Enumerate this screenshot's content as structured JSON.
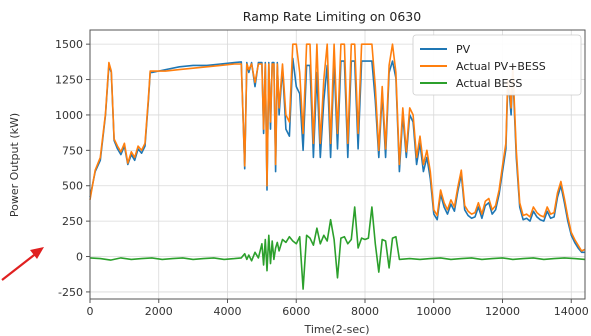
{
  "chart_data": {
    "type": "line",
    "title": "Ramp Rate Limiting on 0630",
    "xlabel": "Time(2-sec)",
    "ylabel": "Power Output (kW)",
    "xlim": [
      0,
      14400
    ],
    "ylim": [
      -300,
      1600
    ],
    "xticks": [
      0,
      2000,
      4000,
      6000,
      8000,
      10000,
      12000,
      14000
    ],
    "xtick_labels": [
      "0",
      "2000",
      "4000",
      "6000",
      "8000",
      "10000",
      "12000",
      "14000"
    ],
    "yticks": [
      -250,
      0,
      250,
      500,
      750,
      1000,
      1250,
      1500
    ],
    "ytick_labels": [
      "-250",
      "0",
      "250",
      "500",
      "750",
      "1000",
      "1250",
      "1500"
    ],
    "grid": true,
    "legend_position": "top-right",
    "series": [
      {
        "name": "PV",
        "color": "#1f77b4",
        "x": [
          0,
          150,
          300,
          450,
          550,
          620,
          700,
          800,
          900,
          1000,
          1100,
          1200,
          1300,
          1400,
          1500,
          1600,
          1700,
          1750,
          1800,
          2200,
          2600,
          3000,
          3400,
          3800,
          4200,
          4400,
          4500,
          4560,
          4620,
          4700,
          4800,
          4900,
          5000,
          5050,
          5100,
          5150,
          5200,
          5250,
          5300,
          5350,
          5400,
          5450,
          5500,
          5600,
          5700,
          5800,
          5900,
          6000,
          6100,
          6200,
          6300,
          6400,
          6500,
          6600,
          6700,
          6800,
          6900,
          7000,
          7100,
          7200,
          7300,
          7400,
          7500,
          7600,
          7700,
          7800,
          7900,
          8000,
          8100,
          8200,
          8300,
          8400,
          8500,
          8600,
          8700,
          8800,
          8900,
          9000,
          9100,
          9200,
          9300,
          9400,
          9500,
          9600,
          9700,
          9800,
          9900,
          10000,
          10100,
          10200,
          10300,
          10400,
          10500,
          10600,
          10700,
          10800,
          10900,
          11000,
          11100,
          11200,
          11300,
          11400,
          11500,
          11600,
          11700,
          11800,
          11900,
          12000,
          12100,
          12150,
          12200,
          12250,
          12300,
          12400,
          12500,
          12600,
          12700,
          12800,
          12900,
          13000,
          13100,
          13200,
          13300,
          13400,
          13500,
          13600,
          13700,
          13800,
          13900,
          14000,
          14100,
          14200,
          14300,
          14400
        ],
        "y": [
          420,
          600,
          680,
          1000,
          1350,
          1300,
          820,
          760,
          720,
          780,
          650,
          720,
          680,
          760,
          730,
          780,
          1100,
          1300,
          1300,
          1320,
          1340,
          1350,
          1350,
          1360,
          1370,
          1375,
          620,
          1370,
          1300,
          1370,
          1200,
          1370,
          1370,
          870,
          1370,
          470,
          1370,
          900,
          1370,
          1370,
          600,
          1370,
          1000,
          1330,
          900,
          850,
          1400,
          1200,
          1150,
          750,
          1350,
          1350,
          700,
          1300,
          700,
          1100,
          1350,
          700,
          1380,
          760,
          1380,
          1380,
          700,
          1380,
          1380,
          760,
          1380,
          1380,
          1380,
          1380,
          1100,
          700,
          1150,
          700,
          1300,
          1380,
          1260,
          600,
          1000,
          700,
          1000,
          950,
          650,
          800,
          600,
          700,
          550,
          300,
          260,
          440,
          350,
          300,
          370,
          320,
          460,
          580,
          330,
          290,
          270,
          280,
          350,
          270,
          360,
          380,
          300,
          330,
          440,
          600,
          760,
          1200,
          1150,
          1000,
          1300,
          700,
          350,
          260,
          270,
          250,
          320,
          280,
          260,
          250,
          320,
          270,
          280,
          420,
          500,
          380,
          250,
          150,
          100,
          60,
          30,
          30
        ]
      },
      {
        "name": "Actual PV+BESS",
        "color": "#ff7f0e",
        "x": [
          0,
          150,
          300,
          450,
          550,
          620,
          700,
          800,
          900,
          1000,
          1100,
          1200,
          1300,
          1400,
          1500,
          1600,
          1700,
          1750,
          1800,
          2200,
          2600,
          3000,
          3400,
          3800,
          4200,
          4400,
          4500,
          4560,
          4620,
          4700,
          4800,
          4900,
          5000,
          5050,
          5100,
          5150,
          5200,
          5250,
          5300,
          5350,
          5400,
          5450,
          5500,
          5600,
          5700,
          5800,
          5900,
          6000,
          6100,
          6200,
          6300,
          6400,
          6500,
          6600,
          6700,
          6800,
          6900,
          7000,
          7100,
          7200,
          7300,
          7400,
          7500,
          7600,
          7700,
          7800,
          7900,
          8000,
          8100,
          8200,
          8300,
          8400,
          8500,
          8600,
          8700,
          8800,
          8900,
          9000,
          9100,
          9200,
          9300,
          9400,
          9500,
          9600,
          9700,
          9800,
          9900,
          10000,
          10100,
          10200,
          10300,
          10400,
          10500,
          10600,
          10700,
          10800,
          10900,
          11000,
          11100,
          11200,
          11300,
          11400,
          11500,
          11600,
          11700,
          11800,
          11900,
          12000,
          12100,
          12150,
          12200,
          12250,
          12300,
          12400,
          12500,
          12600,
          12700,
          12800,
          12900,
          13000,
          13100,
          13200,
          13300,
          13400,
          13500,
          13600,
          13700,
          13800,
          13900,
          14000,
          14100,
          14200,
          14300,
          14400
        ],
        "y": [
          400,
          610,
          700,
          1010,
          1370,
          1310,
          830,
          780,
          740,
          800,
          660,
          740,
          700,
          780,
          750,
          800,
          1120,
          1310,
          1310,
          1310,
          1320,
          1330,
          1340,
          1350,
          1360,
          1360,
          640,
          1360,
          1320,
          1360,
          1230,
          1360,
          1360,
          900,
          1360,
          500,
          1360,
          950,
          1360,
          1360,
          650,
          1360,
          1050,
          1360,
          1000,
          950,
          1500,
          1500,
          1300,
          870,
          1500,
          1500,
          800,
          1500,
          800,
          1250,
          1500,
          800,
          1500,
          870,
          1500,
          1500,
          800,
          1500,
          1500,
          870,
          1500,
          1500,
          1500,
          1500,
          1200,
          750,
          1200,
          760,
          1350,
          1500,
          1300,
          650,
          1050,
          740,
          1050,
          1000,
          700,
          850,
          650,
          750,
          600,
          330,
          290,
          470,
          380,
          330,
          400,
          350,
          490,
          610,
          360,
          320,
          300,
          310,
          380,
          300,
          390,
          410,
          330,
          360,
          470,
          640,
          800,
          1250,
          1200,
          1050,
          1350,
          750,
          380,
          290,
          300,
          280,
          350,
          310,
          290,
          280,
          350,
          300,
          310,
          450,
          530,
          410,
          280,
          170,
          120,
          80,
          40,
          50
        ]
      },
      {
        "name": "Actual BESS",
        "color": "#2ca02c",
        "x": [
          0,
          300,
          600,
          900,
          1200,
          1500,
          1800,
          2100,
          2400,
          2700,
          3000,
          3300,
          3600,
          3900,
          4200,
          4400,
          4500,
          4560,
          4620,
          4700,
          4800,
          4900,
          5000,
          5050,
          5100,
          5150,
          5200,
          5250,
          5300,
          5350,
          5400,
          5450,
          5500,
          5600,
          5700,
          5800,
          5900,
          6000,
          6100,
          6200,
          6300,
          6400,
          6500,
          6600,
          6700,
          6800,
          6900,
          7000,
          7100,
          7200,
          7300,
          7400,
          7500,
          7600,
          7700,
          7800,
          7900,
          8000,
          8100,
          8200,
          8300,
          8400,
          8500,
          8600,
          8700,
          8800,
          8900,
          9000,
          9300,
          9600,
          9900,
          10200,
          10500,
          10800,
          11100,
          11400,
          11700,
          12000,
          12300,
          12600,
          12900,
          13200,
          13500,
          13800,
          14100,
          14400
        ],
        "y": [
          -10,
          -15,
          -25,
          -10,
          -20,
          -15,
          -10,
          -20,
          -15,
          -10,
          -20,
          -15,
          -10,
          -20,
          -15,
          -10,
          20,
          -20,
          10,
          -30,
          30,
          -10,
          90,
          -60,
          120,
          -100,
          150,
          -50,
          110,
          -20,
          60,
          100,
          40,
          120,
          100,
          140,
          110,
          90,
          140,
          -230,
          150,
          130,
          80,
          200,
          90,
          150,
          110,
          260,
          120,
          -150,
          130,
          140,
          90,
          120,
          350,
          60,
          130,
          120,
          130,
          350,
          90,
          -110,
          120,
          110,
          -80,
          130,
          140,
          -20,
          -15,
          -20,
          -15,
          -10,
          -20,
          -15,
          -10,
          -20,
          -15,
          -10,
          -20,
          -15,
          -10,
          -20,
          -15,
          -10,
          -15,
          -20
        ]
      }
    ]
  }
}
